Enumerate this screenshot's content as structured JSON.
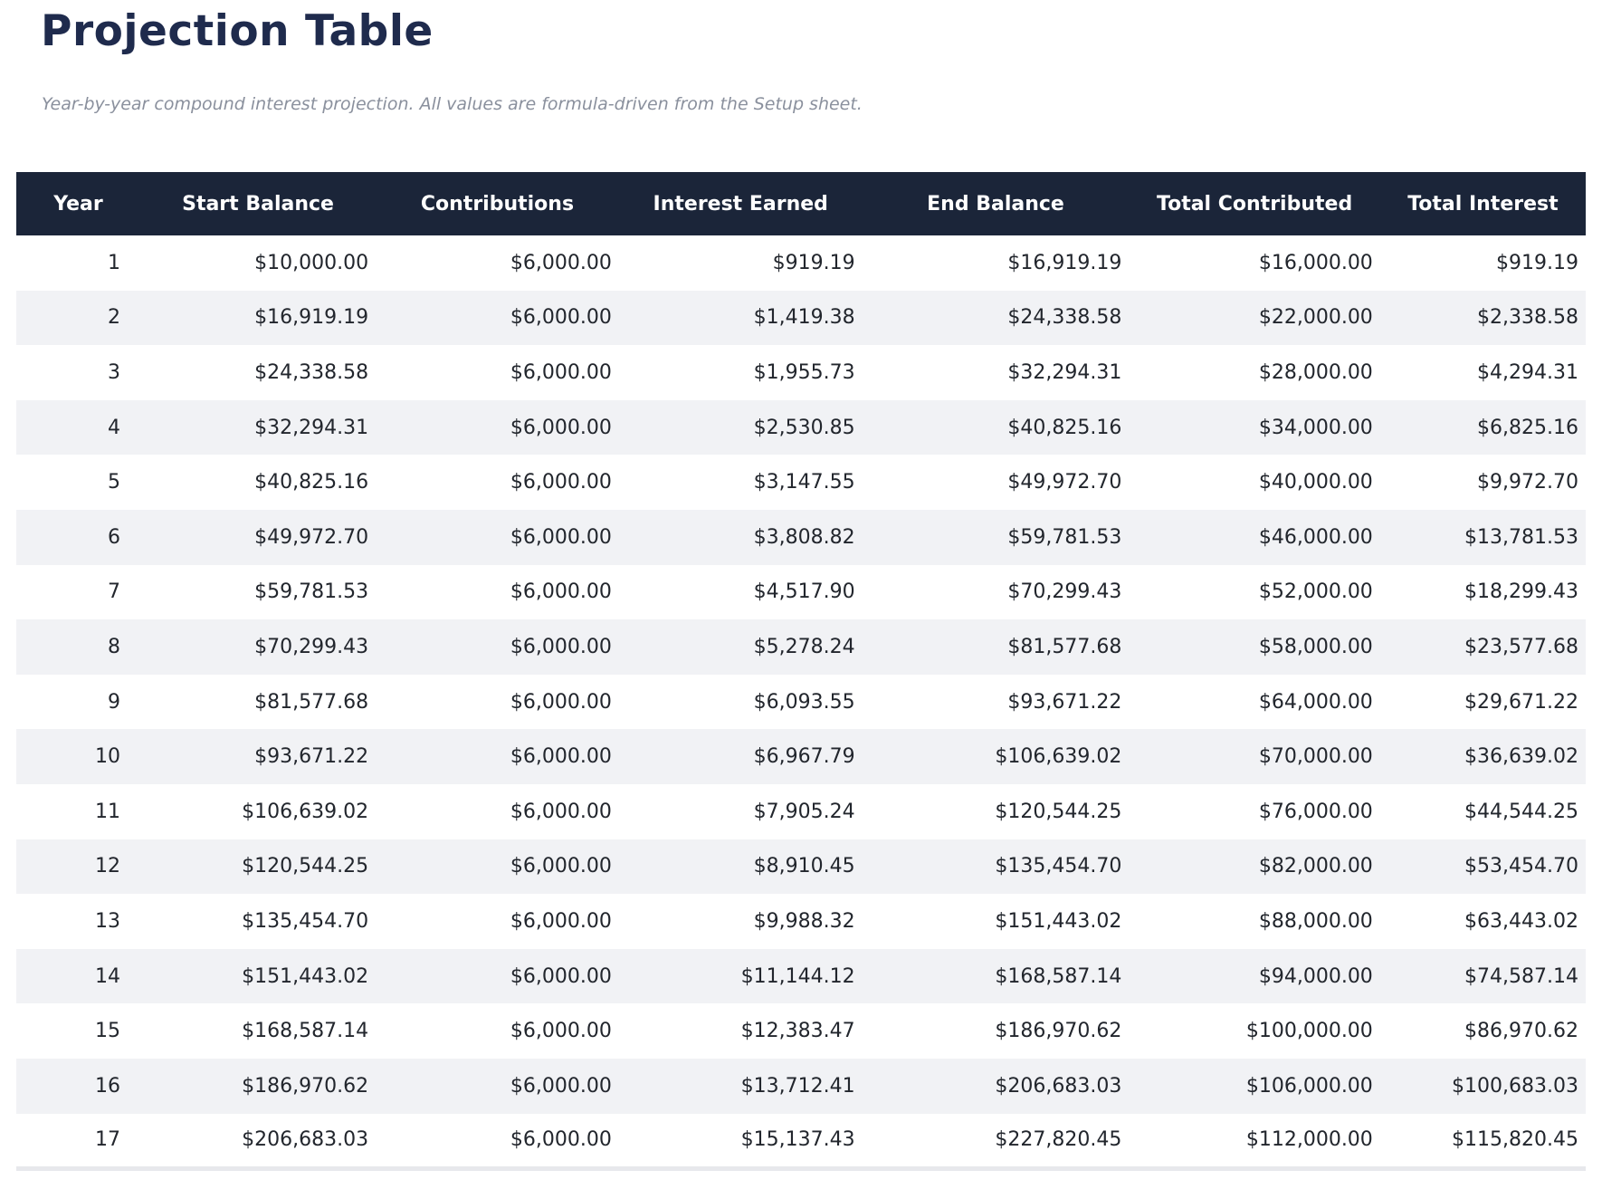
{
  "page": {
    "title": "Projection Table",
    "subtitle": "Year-by-year compound interest projection. All values are formula-driven from the Setup sheet."
  },
  "colors": {
    "title_text": "#1f2b4d",
    "subtitle_text": "#8a909d",
    "header_bg": "#1b2539",
    "header_text": "#ffffff",
    "row_text": "#22262d",
    "row_stripe": "#f1f2f5",
    "table_border": "#e7e8ec"
  },
  "table": {
    "columns": [
      "Year",
      "Start Balance",
      "Contributions",
      "Interest Earned",
      "End Balance",
      "Total Contributed",
      "Total Interest"
    ],
    "rows": [
      [
        "1",
        "$10,000.00",
        "$6,000.00",
        "$919.19",
        "$16,919.19",
        "$16,000.00",
        "$919.19"
      ],
      [
        "2",
        "$16,919.19",
        "$6,000.00",
        "$1,419.38",
        "$24,338.58",
        "$22,000.00",
        "$2,338.58"
      ],
      [
        "3",
        "$24,338.58",
        "$6,000.00",
        "$1,955.73",
        "$32,294.31",
        "$28,000.00",
        "$4,294.31"
      ],
      [
        "4",
        "$32,294.31",
        "$6,000.00",
        "$2,530.85",
        "$40,825.16",
        "$34,000.00",
        "$6,825.16"
      ],
      [
        "5",
        "$40,825.16",
        "$6,000.00",
        "$3,147.55",
        "$49,972.70",
        "$40,000.00",
        "$9,972.70"
      ],
      [
        "6",
        "$49,972.70",
        "$6,000.00",
        "$3,808.82",
        "$59,781.53",
        "$46,000.00",
        "$13,781.53"
      ],
      [
        "7",
        "$59,781.53",
        "$6,000.00",
        "$4,517.90",
        "$70,299.43",
        "$52,000.00",
        "$18,299.43"
      ],
      [
        "8",
        "$70,299.43",
        "$6,000.00",
        "$5,278.24",
        "$81,577.68",
        "$58,000.00",
        "$23,577.68"
      ],
      [
        "9",
        "$81,577.68",
        "$6,000.00",
        "$6,093.55",
        "$93,671.22",
        "$64,000.00",
        "$29,671.22"
      ],
      [
        "10",
        "$93,671.22",
        "$6,000.00",
        "$6,967.79",
        "$106,639.02",
        "$70,000.00",
        "$36,639.02"
      ],
      [
        "11",
        "$106,639.02",
        "$6,000.00",
        "$7,905.24",
        "$120,544.25",
        "$76,000.00",
        "$44,544.25"
      ],
      [
        "12",
        "$120,544.25",
        "$6,000.00",
        "$8,910.45",
        "$135,454.70",
        "$82,000.00",
        "$53,454.70"
      ],
      [
        "13",
        "$135,454.70",
        "$6,000.00",
        "$9,988.32",
        "$151,443.02",
        "$88,000.00",
        "$63,443.02"
      ],
      [
        "14",
        "$151,443.02",
        "$6,000.00",
        "$11,144.12",
        "$168,587.14",
        "$94,000.00",
        "$74,587.14"
      ],
      [
        "15",
        "$168,587.14",
        "$6,000.00",
        "$12,383.47",
        "$186,970.62",
        "$100,000.00",
        "$86,970.62"
      ],
      [
        "16",
        "$186,970.62",
        "$6,000.00",
        "$13,712.41",
        "$206,683.03",
        "$106,000.00",
        "$100,683.03"
      ],
      [
        "17",
        "$206,683.03",
        "$6,000.00",
        "$15,137.43",
        "$227,820.45",
        "$112,000.00",
        "$115,820.45"
      ]
    ]
  }
}
